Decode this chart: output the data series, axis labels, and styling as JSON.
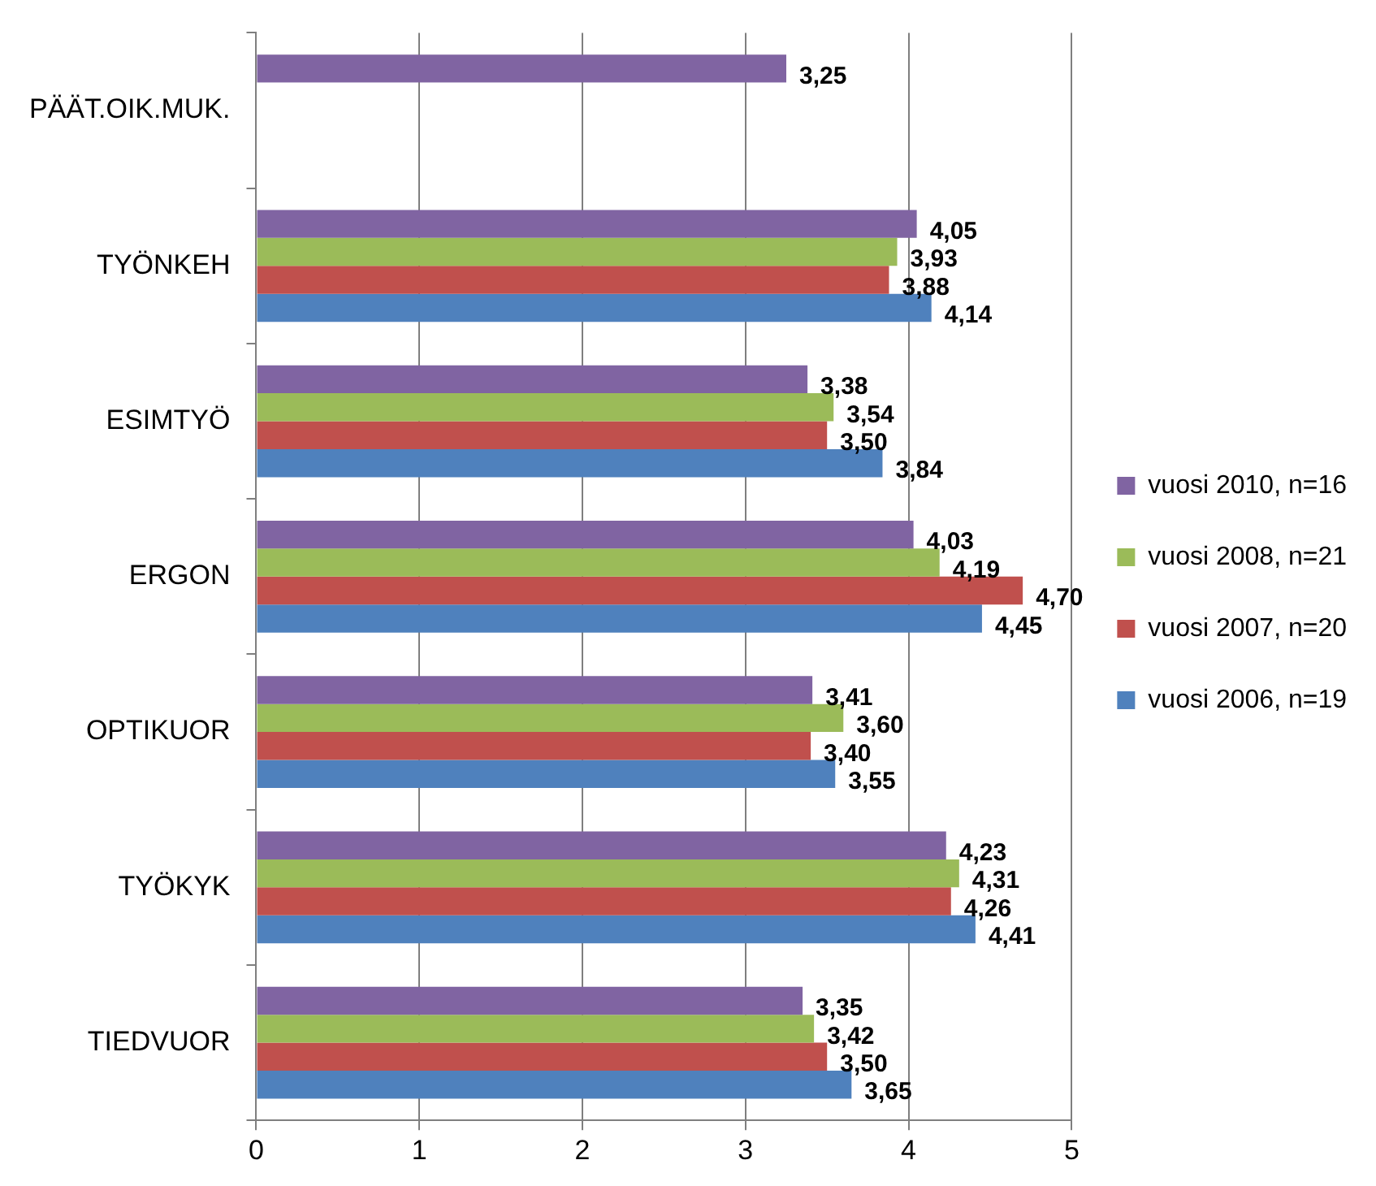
{
  "chart_data": {
    "type": "bar",
    "orientation": "horizontal",
    "categories": [
      "PÄÄT.OIK.MUK.",
      "TYÖNKEH",
      "ESIMTYÖ",
      "ERGON",
      "OPTIKUOR",
      "TYÖKYK",
      "TIEDVUOR"
    ],
    "series": [
      {
        "name": "vuosi 2010, n=16",
        "color": "#8064a2",
        "values": [
          3.25,
          4.05,
          3.38,
          4.03,
          3.41,
          4.23,
          3.35
        ],
        "value_labels": [
          "3,25",
          "4,05",
          "3,38",
          "4,03",
          "3,41",
          "4,23",
          "3,35"
        ]
      },
      {
        "name": "vuosi 2008, n=21",
        "color": "#9bbb59",
        "values": [
          null,
          3.93,
          3.54,
          4.19,
          3.6,
          4.31,
          3.42
        ],
        "value_labels": [
          null,
          "3,93",
          "3,54",
          "4,19",
          "3,60",
          "4,31",
          "3,42"
        ]
      },
      {
        "name": "vuosi 2007, n=20",
        "color": "#c0504d",
        "values": [
          null,
          3.88,
          3.5,
          4.7,
          3.4,
          4.26,
          3.5
        ],
        "value_labels": [
          null,
          "3,88",
          "3,50",
          "4,70",
          "3,40",
          "4,26",
          "3,50"
        ]
      },
      {
        "name": "vuosi 2006, n=19",
        "color": "#4f81bd",
        "values": [
          null,
          4.14,
          3.84,
          4.45,
          3.55,
          4.41,
          3.65
        ],
        "value_labels": [
          null,
          "4,14",
          "3,84",
          "4,45",
          "3,55",
          "4,41",
          "3,65"
        ]
      }
    ],
    "xlim": [
      0,
      5
    ],
    "xticks": [
      0,
      1,
      2,
      3,
      4,
      5
    ],
    "grid": "x",
    "legend": "right"
  }
}
